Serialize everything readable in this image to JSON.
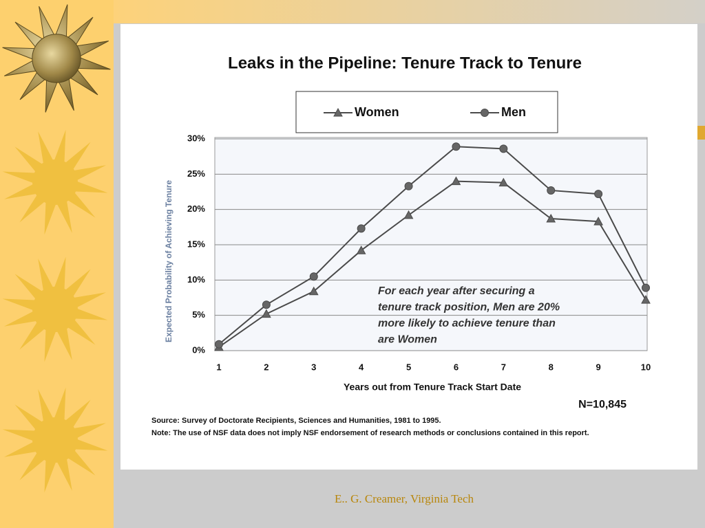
{
  "chart_data": {
    "type": "line",
    "title": "Leaks in the Pipeline: Tenure Track to Tenure",
    "xlabel": "Years out from Tenure Track Start Date",
    "ylabel": "Expected Probability of Achieving Tenure",
    "categories": [
      "1",
      "2",
      "3",
      "4",
      "5",
      "6",
      "7",
      "8",
      "9",
      "10"
    ],
    "series": [
      {
        "name": "Women",
        "color": "#4a4a4a",
        "marker": "triangle",
        "values": [
          0.5,
          5.2,
          8.4,
          14.2,
          19.2,
          24,
          23.8,
          18.7,
          18.3,
          7.2
        ]
      },
      {
        "name": "Men",
        "color": "#4a4a4a",
        "marker": "circle",
        "values": [
          0.9,
          6.5,
          10.5,
          17.3,
          23.3,
          28.9,
          28.6,
          22.7,
          22.2,
          8.9
        ]
      }
    ],
    "ylim": [
      0,
      30
    ],
    "yticks": [
      {
        "value": 0,
        "label": "0%"
      },
      {
        "value": 5,
        "label": "5%"
      },
      {
        "value": 10,
        "label": "10%"
      },
      {
        "value": 15,
        "label": "15%"
      },
      {
        "value": 20,
        "label": "20%"
      },
      {
        "value": 25,
        "label": "25%"
      },
      {
        "value": 30,
        "label": "30%"
      }
    ],
    "grid": true,
    "annotation": [
      "For each year after securing a",
      "tenure track position, Men are 20%",
      "more likely to achieve tenure than",
      "are Women"
    ],
    "sample_size": "N=10,845",
    "source": "Source: Survey of Doctorate Recipients, Sciences and Humanities, 1981 to 1995.",
    "note": "Note: The use of NSF data does not imply NSF endorsement of research methods or conclusions contained in this report."
  },
  "footer": "E.. G. Creamer, Virginia Tech"
}
